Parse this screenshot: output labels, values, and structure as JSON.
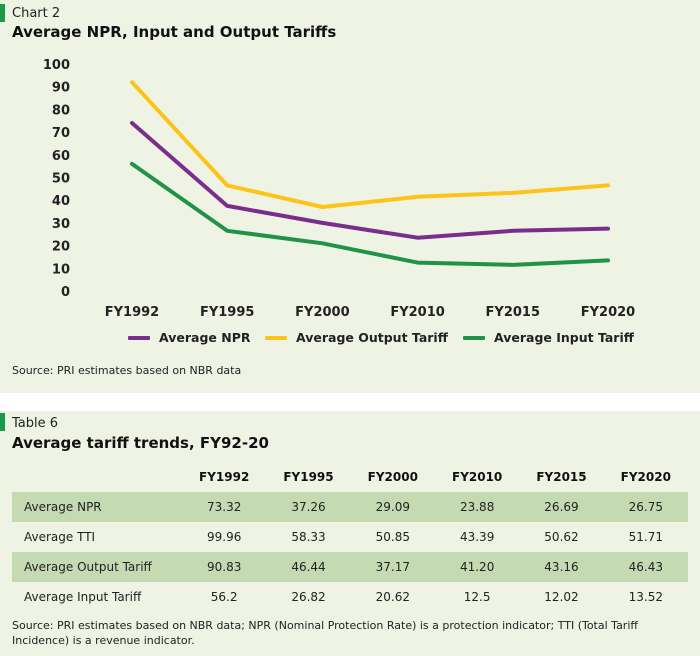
{
  "chart_panel": {
    "label": "Chart 2",
    "title": "Average NPR, Input and Output Tariffs",
    "source": "Source: PRI estimates based on NBR data"
  },
  "chart_data": {
    "type": "line",
    "title": "Average NPR, Input and Output Tariffs",
    "categories": [
      "FY1992",
      "FY1995",
      "FY2000",
      "FY2010",
      "FY2015",
      "FY2020"
    ],
    "ylim": [
      0,
      100
    ],
    "yticks": [
      "0",
      "10",
      "20",
      "30",
      "40",
      "50",
      "60",
      "70",
      "80",
      "90",
      "100"
    ],
    "grid": false,
    "legend_position": "bottom",
    "series": [
      {
        "name": "Average NPR",
        "color": "#7b2d8e",
        "values": [
          74,
          37.5,
          30,
          23.5,
          26.5,
          27.5
        ]
      },
      {
        "name": "Average Output Tariff",
        "color": "#fcc419",
        "values": [
          92,
          46.5,
          37,
          41.5,
          43.2,
          46.5
        ]
      },
      {
        "name": "Average Input Tariff",
        "color": "#1f9446",
        "values": [
          56,
          26.5,
          21,
          12.5,
          11.5,
          13.5
        ]
      }
    ]
  },
  "table_panel": {
    "label": "Table 6",
    "title": "Average tariff trends, FY92-20",
    "columns": [
      "FY1992",
      "FY1995",
      "FY2000",
      "FY2010",
      "FY2015",
      "FY2020"
    ],
    "rows": [
      {
        "label": "Average NPR",
        "values": [
          "73.32",
          "37.26",
          "29.09",
          "23.88",
          "26.69",
          "26.75"
        ]
      },
      {
        "label": "Average TTI",
        "values": [
          "99.96",
          "58.33",
          "50.85",
          "43.39",
          "50.62",
          "51.71"
        ]
      },
      {
        "label": "Average Output Tariff",
        "values": [
          "90.83",
          "46.44",
          "37.17",
          "41.20",
          "43.16",
          "46.43"
        ]
      },
      {
        "label": "Average Input Tariff",
        "values": [
          "56.2",
          "26.82",
          "20.62",
          "12.5",
          "12.02",
          "13.52"
        ]
      }
    ],
    "source_line1": "Source: PRI estimates based on NBR data; NPR (Nominal Protection Rate) is a protection indicator; TTI (Total Tariff",
    "source_line2": "Incidence) is a revenue indicator."
  },
  "colors": {
    "panel_background": "#eef3e4",
    "accent_tag": "#1a9a4a",
    "row_shade": "#c4dab3"
  }
}
